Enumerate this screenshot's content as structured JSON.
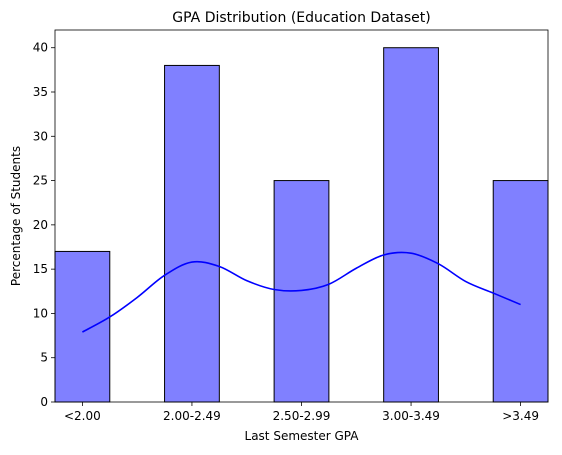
{
  "chart_data": {
    "type": "bar",
    "title": "GPA Distribution (Education Dataset)",
    "xlabel": "Last Semester GPA",
    "ylabel": "Percentage of Students",
    "categories": [
      "<2.00",
      "2.00-2.49",
      "2.50-2.99",
      "3.00-3.49",
      ">3.49"
    ],
    "series": [
      {
        "values": [
          17,
          38,
          25,
          40,
          25
        ]
      }
    ],
    "ylim": [
      0,
      42
    ],
    "yticks": [
      0,
      5,
      10,
      15,
      20,
      25,
      30,
      35,
      40
    ],
    "grid": false,
    "bar_color": "#8080ff",
    "bar_edge_color": "#000000",
    "kde_line": {
      "color": "#0000ff",
      "x": [
        0,
        0.25,
        0.5,
        0.75,
        1.0,
        1.25,
        1.5,
        1.75,
        2.0,
        2.25,
        2.5,
        2.75,
        3.0,
        3.25,
        3.5,
        3.75,
        4.0
      ],
      "y": [
        7.9,
        9.6,
        11.8,
        14.3,
        15.8,
        15.3,
        13.7,
        12.7,
        12.6,
        13.3,
        15.1,
        16.6,
        16.8,
        15.6,
        13.6,
        12.3,
        11.0
      ]
    }
  }
}
